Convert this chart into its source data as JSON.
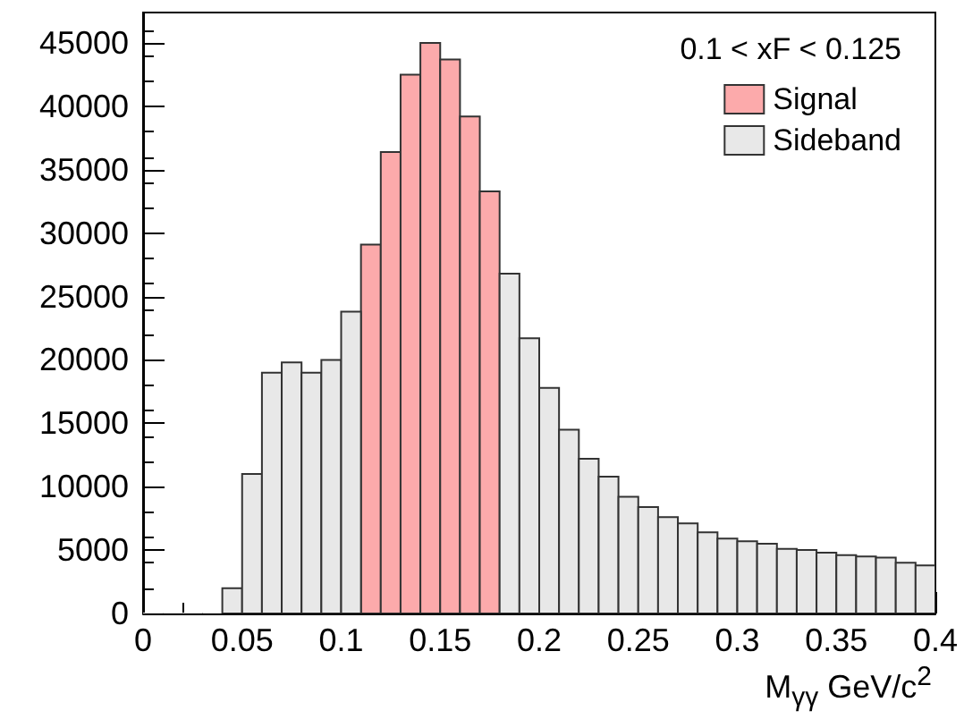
{
  "chart_data": {
    "type": "histogram",
    "xlabel": "M$_{γγ}$ GeV/c$^{2}$",
    "legend_title": "0.1 < xF < 0.125",
    "bins": [
      0,
      0.01,
      0.02,
      0.03,
      0.04,
      0.05,
      0.06,
      0.07,
      0.08,
      0.09,
      0.1,
      0.11,
      0.12,
      0.13,
      0.14,
      0.15,
      0.16,
      0.17,
      0.18,
      0.19,
      0.2,
      0.21,
      0.22,
      0.23,
      0.24,
      0.25,
      0.26,
      0.27,
      0.28,
      0.29,
      0.3,
      0.31,
      0.32,
      0.33,
      0.34,
      0.35,
      0.36,
      0.37,
      0.38,
      0.39,
      0.4
    ],
    "series": [
      {
        "name": "Signal",
        "color": "#fcaaab",
        "values": [
          null,
          null,
          null,
          null,
          null,
          null,
          null,
          null,
          null,
          null,
          null,
          29100,
          36400,
          42500,
          45000,
          43700,
          39200,
          33300,
          null,
          null,
          null,
          null,
          null,
          null,
          null,
          null,
          null,
          null,
          null,
          null,
          null,
          null,
          null,
          null,
          null,
          null,
          null,
          null,
          null,
          null
        ]
      },
      {
        "name": "Sideband",
        "color": "#e8e8e8",
        "values": [
          0,
          0,
          0,
          0,
          2000,
          11000,
          19000,
          19800,
          19000,
          20000,
          23800,
          null,
          null,
          null,
          null,
          null,
          null,
          null,
          26800,
          21700,
          17800,
          14500,
          12200,
          10800,
          9200,
          8400,
          7600,
          7100,
          6400,
          5900,
          5700,
          5500,
          5100,
          5000,
          4800,
          4600,
          4500,
          4400,
          4000,
          3800
        ]
      }
    ],
    "xlim": [
      0,
      0.4
    ],
    "xticks": [
      0,
      0.05,
      0.1,
      0.15,
      0.2,
      0.25,
      0.3,
      0.35,
      0.4
    ],
    "ylim": [
      0,
      47400
    ],
    "yticks": [
      0,
      5000,
      10000,
      15000,
      20000,
      25000,
      30000,
      35000,
      40000,
      45000
    ],
    "grid": false,
    "legend": "top right"
  }
}
